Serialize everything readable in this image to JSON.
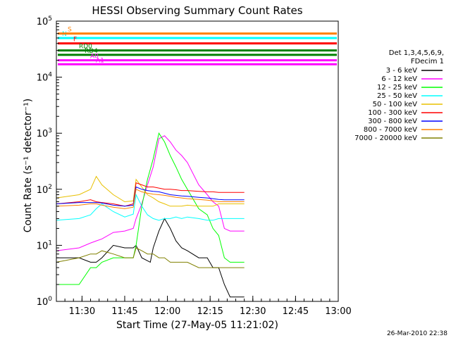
{
  "chart_data": {
    "type": "line",
    "title": "HESSI Observing Summary Count Rates",
    "xlabel": "Start Time (27-May-05 11:21:02)",
    "ylabel": "Count Rate (s⁻¹ detector⁻¹)",
    "x_unit": "minutes since 11:21:02",
    "xlim": [
      0,
      99
    ],
    "ylim": [
      1,
      100000
    ],
    "yscale": "log",
    "x_ticks": [
      {
        "x": 9,
        "label": "11:30"
      },
      {
        "x": 24,
        "label": "11:45"
      },
      {
        "x": 39,
        "label": "12:00"
      },
      {
        "x": 54,
        "label": "12:15"
      },
      {
        "x": 69,
        "label": "12:30"
      },
      {
        "x": 84,
        "label": "12:45"
      },
      {
        "x": 99,
        "label": "13:00"
      }
    ],
    "y_ticks": [
      {
        "value": 1,
        "base": "10",
        "exp": "0"
      },
      {
        "value": 10,
        "base": "10",
        "exp": "1"
      },
      {
        "value": 100,
        "base": "10",
        "exp": "2"
      },
      {
        "value": 1000,
        "base": "10",
        "exp": "3"
      },
      {
        "value": 10000,
        "base": "10",
        "exp": "4"
      },
      {
        "value": 100000,
        "base": "10",
        "exp": "5"
      }
    ],
    "legend": {
      "header": [
        "Det 1,3,4,5,6,9,",
        "FDecim 1"
      ],
      "placement": "right"
    },
    "series": [
      {
        "name": "3 - 6 keV",
        "color": "#000000",
        "points": [
          [
            0,
            6
          ],
          [
            8,
            6
          ],
          [
            12,
            5
          ],
          [
            14,
            5
          ],
          [
            16,
            6
          ],
          [
            20,
            10
          ],
          [
            24,
            9
          ],
          [
            27,
            9
          ],
          [
            28,
            10
          ],
          [
            30,
            6
          ],
          [
            33,
            5
          ],
          [
            34,
            9
          ],
          [
            36,
            18
          ],
          [
            38,
            30
          ],
          [
            40,
            20
          ],
          [
            42,
            12
          ],
          [
            44,
            9
          ],
          [
            46,
            8
          ],
          [
            50,
            6
          ],
          [
            53,
            6
          ],
          [
            55,
            4
          ],
          [
            57,
            4
          ],
          [
            59,
            2
          ],
          [
            61,
            1.2
          ],
          [
            66,
            1.2
          ]
        ]
      },
      {
        "name": "6 - 12 keV",
        "color": "#ff00ff",
        "points": [
          [
            0,
            8
          ],
          [
            8,
            9
          ],
          [
            12,
            11
          ],
          [
            14,
            12
          ],
          [
            16,
            13
          ],
          [
            20,
            17
          ],
          [
            24,
            18
          ],
          [
            27,
            20
          ],
          [
            28,
            30
          ],
          [
            30,
            55
          ],
          [
            32,
            120
          ],
          [
            34,
            250
          ],
          [
            36,
            800
          ],
          [
            38,
            900
          ],
          [
            40,
            700
          ],
          [
            42,
            500
          ],
          [
            44,
            400
          ],
          [
            46,
            300
          ],
          [
            50,
            120
          ],
          [
            53,
            80
          ],
          [
            55,
            60
          ],
          [
            57,
            50
          ],
          [
            59,
            20
          ],
          [
            61,
            18
          ],
          [
            66,
            18
          ]
        ]
      },
      {
        "name": "12 - 25 keV",
        "color": "#00ff00",
        "points": [
          [
            0,
            2
          ],
          [
            8,
            2
          ],
          [
            12,
            4
          ],
          [
            14,
            4
          ],
          [
            16,
            5
          ],
          [
            20,
            6
          ],
          [
            24,
            6
          ],
          [
            27,
            6
          ],
          [
            28,
            10
          ],
          [
            30,
            50
          ],
          [
            32,
            150
          ],
          [
            34,
            350
          ],
          [
            36,
            1000
          ],
          [
            38,
            700
          ],
          [
            40,
            400
          ],
          [
            42,
            250
          ],
          [
            44,
            150
          ],
          [
            46,
            100
          ],
          [
            50,
            45
          ],
          [
            53,
            35
          ],
          [
            55,
            20
          ],
          [
            57,
            15
          ],
          [
            59,
            6
          ],
          [
            61,
            5
          ],
          [
            66,
            5
          ]
        ]
      },
      {
        "name": "25 - 50 keV",
        "color": "#00ffff",
        "points": [
          [
            0,
            28
          ],
          [
            8,
            30
          ],
          [
            12,
            35
          ],
          [
            14,
            45
          ],
          [
            16,
            55
          ],
          [
            20,
            40
          ],
          [
            24,
            32
          ],
          [
            27,
            36
          ],
          [
            28,
            80
          ],
          [
            30,
            50
          ],
          [
            32,
            35
          ],
          [
            34,
            30
          ],
          [
            36,
            28
          ],
          [
            38,
            30
          ],
          [
            40,
            30
          ],
          [
            42,
            32
          ],
          [
            44,
            30
          ],
          [
            46,
            32
          ],
          [
            50,
            30
          ],
          [
            53,
            28
          ],
          [
            55,
            28
          ],
          [
            57,
            30
          ],
          [
            59,
            30
          ],
          [
            61,
            30
          ],
          [
            66,
            30
          ]
        ]
      },
      {
        "name": "50 - 100 keV",
        "color": "#e8c000",
        "points": [
          [
            0,
            70
          ],
          [
            8,
            80
          ],
          [
            12,
            100
          ],
          [
            14,
            170
          ],
          [
            16,
            120
          ],
          [
            20,
            80
          ],
          [
            24,
            60
          ],
          [
            27,
            62
          ],
          [
            28,
            150
          ],
          [
            30,
            110
          ],
          [
            32,
            80
          ],
          [
            34,
            70
          ],
          [
            36,
            60
          ],
          [
            38,
            55
          ],
          [
            40,
            50
          ],
          [
            42,
            50
          ],
          [
            44,
            50
          ],
          [
            46,
            52
          ],
          [
            50,
            50
          ],
          [
            53,
            50
          ],
          [
            55,
            50
          ],
          [
            57,
            55
          ],
          [
            59,
            55
          ],
          [
            61,
            55
          ],
          [
            66,
            55
          ]
        ]
      },
      {
        "name": "100 - 300 keV",
        "color": "#ff0000",
        "points": [
          [
            0,
            55
          ],
          [
            8,
            60
          ],
          [
            12,
            65
          ],
          [
            14,
            60
          ],
          [
            16,
            58
          ],
          [
            20,
            55
          ],
          [
            24,
            50
          ],
          [
            27,
            55
          ],
          [
            28,
            130
          ],
          [
            30,
            120
          ],
          [
            32,
            110
          ],
          [
            34,
            110
          ],
          [
            36,
            105
          ],
          [
            38,
            100
          ],
          [
            40,
            100
          ],
          [
            42,
            98
          ],
          [
            44,
            95
          ],
          [
            46,
            95
          ],
          [
            50,
            92
          ],
          [
            53,
            90
          ],
          [
            55,
            90
          ],
          [
            57,
            88
          ],
          [
            59,
            88
          ],
          [
            61,
            88
          ],
          [
            66,
            88
          ]
        ]
      },
      {
        "name": "300 - 800 keV",
        "color": "#0000ff",
        "points": [
          [
            0,
            55
          ],
          [
            8,
            58
          ],
          [
            12,
            58
          ],
          [
            14,
            58
          ],
          [
            16,
            57
          ],
          [
            20,
            52
          ],
          [
            24,
            50
          ],
          [
            27,
            52
          ],
          [
            28,
            110
          ],
          [
            30,
            100
          ],
          [
            32,
            95
          ],
          [
            34,
            92
          ],
          [
            36,
            90
          ],
          [
            38,
            85
          ],
          [
            40,
            80
          ],
          [
            42,
            78
          ],
          [
            44,
            76
          ],
          [
            46,
            75
          ],
          [
            50,
            72
          ],
          [
            53,
            70
          ],
          [
            55,
            68
          ],
          [
            57,
            66
          ],
          [
            59,
            65
          ],
          [
            61,
            65
          ],
          [
            66,
            65
          ]
        ]
      },
      {
        "name": "800 - 7000 keV",
        "color": "#ff8000",
        "points": [
          [
            0,
            50
          ],
          [
            8,
            52
          ],
          [
            12,
            55
          ],
          [
            14,
            55
          ],
          [
            16,
            52
          ],
          [
            20,
            48
          ],
          [
            24,
            45
          ],
          [
            27,
            48
          ],
          [
            28,
            100
          ],
          [
            30,
            90
          ],
          [
            32,
            85
          ],
          [
            34,
            82
          ],
          [
            36,
            80
          ],
          [
            38,
            78
          ],
          [
            40,
            75
          ],
          [
            42,
            72
          ],
          [
            44,
            70
          ],
          [
            46,
            68
          ],
          [
            50,
            66
          ],
          [
            53,
            64
          ],
          [
            55,
            62
          ],
          [
            57,
            60
          ],
          [
            59,
            60
          ],
          [
            61,
            60
          ],
          [
            66,
            60
          ]
        ]
      },
      {
        "name": "7000 - 20000 keV",
        "color": "#808000",
        "points": [
          [
            0,
            5
          ],
          [
            8,
            6
          ],
          [
            12,
            7
          ],
          [
            14,
            7
          ],
          [
            16,
            8
          ],
          [
            20,
            7
          ],
          [
            24,
            6
          ],
          [
            27,
            6
          ],
          [
            28,
            9
          ],
          [
            30,
            8
          ],
          [
            32,
            7
          ],
          [
            34,
            7
          ],
          [
            36,
            6
          ],
          [
            38,
            6
          ],
          [
            40,
            5
          ],
          [
            42,
            5
          ],
          [
            44,
            5
          ],
          [
            46,
            5
          ],
          [
            50,
            4
          ],
          [
            53,
            4
          ],
          [
            55,
            4
          ],
          [
            57,
            4
          ],
          [
            59,
            4
          ],
          [
            61,
            4
          ],
          [
            66,
            4
          ]
        ]
      }
    ],
    "segments": [
      {
        "label": "N",
        "color": "#00ffff",
        "y": 50000
      },
      {
        "label": "S",
        "color": "#ff8000",
        "y": 60000
      },
      {
        "label": "F",
        "color": "#ff0000",
        "y": 40000
      },
      {
        "label": "RD0",
        "color": "#008000",
        "y": 30000
      },
      {
        "label": "RD4",
        "color": "#008000",
        "y": 25000
      },
      {
        "label": "A0",
        "color": "#ff00ff",
        "y": 20000
      },
      {
        "label": "A1",
        "color": "#ff00ff",
        "y": 17000
      }
    ],
    "timestamp": "26-Mar-2010 22:38"
  }
}
